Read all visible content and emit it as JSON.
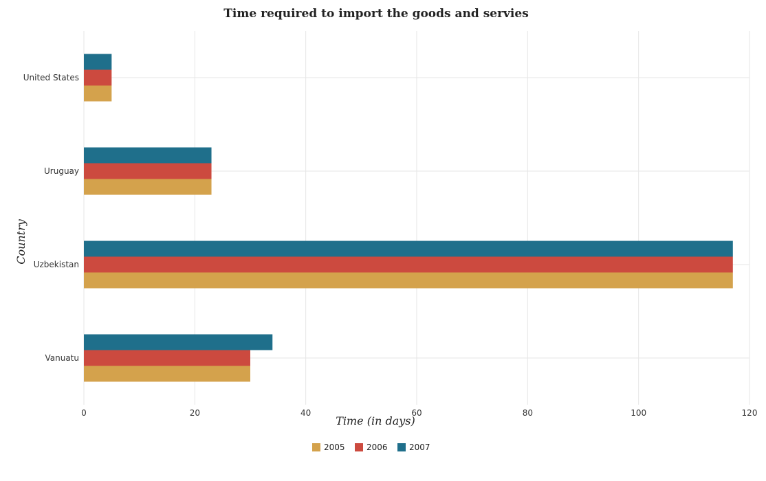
{
  "chart_data": {
    "type": "bar",
    "orientation": "horizontal",
    "title": "Time required to import the goods and servies",
    "xlabel": "Time (in days)",
    "ylabel": "Country",
    "categories": [
      "United States",
      "Uruguay",
      "Uzbekistan",
      "Vanuatu"
    ],
    "series": [
      {
        "name": "2005",
        "color": "#d4a24c",
        "values": [
          5,
          23,
          117,
          30
        ]
      },
      {
        "name": "2006",
        "color": "#cc4a3f",
        "values": [
          5,
          23,
          117,
          30
        ]
      },
      {
        "name": "2007",
        "color": "#1f6f8b",
        "values": [
          5,
          23,
          117,
          34
        ]
      }
    ],
    "xlim": [
      0,
      120
    ],
    "xticks": [
      0,
      20,
      40,
      60,
      80,
      100,
      120
    ],
    "grid": true,
    "legend_position": "bottom-center"
  }
}
